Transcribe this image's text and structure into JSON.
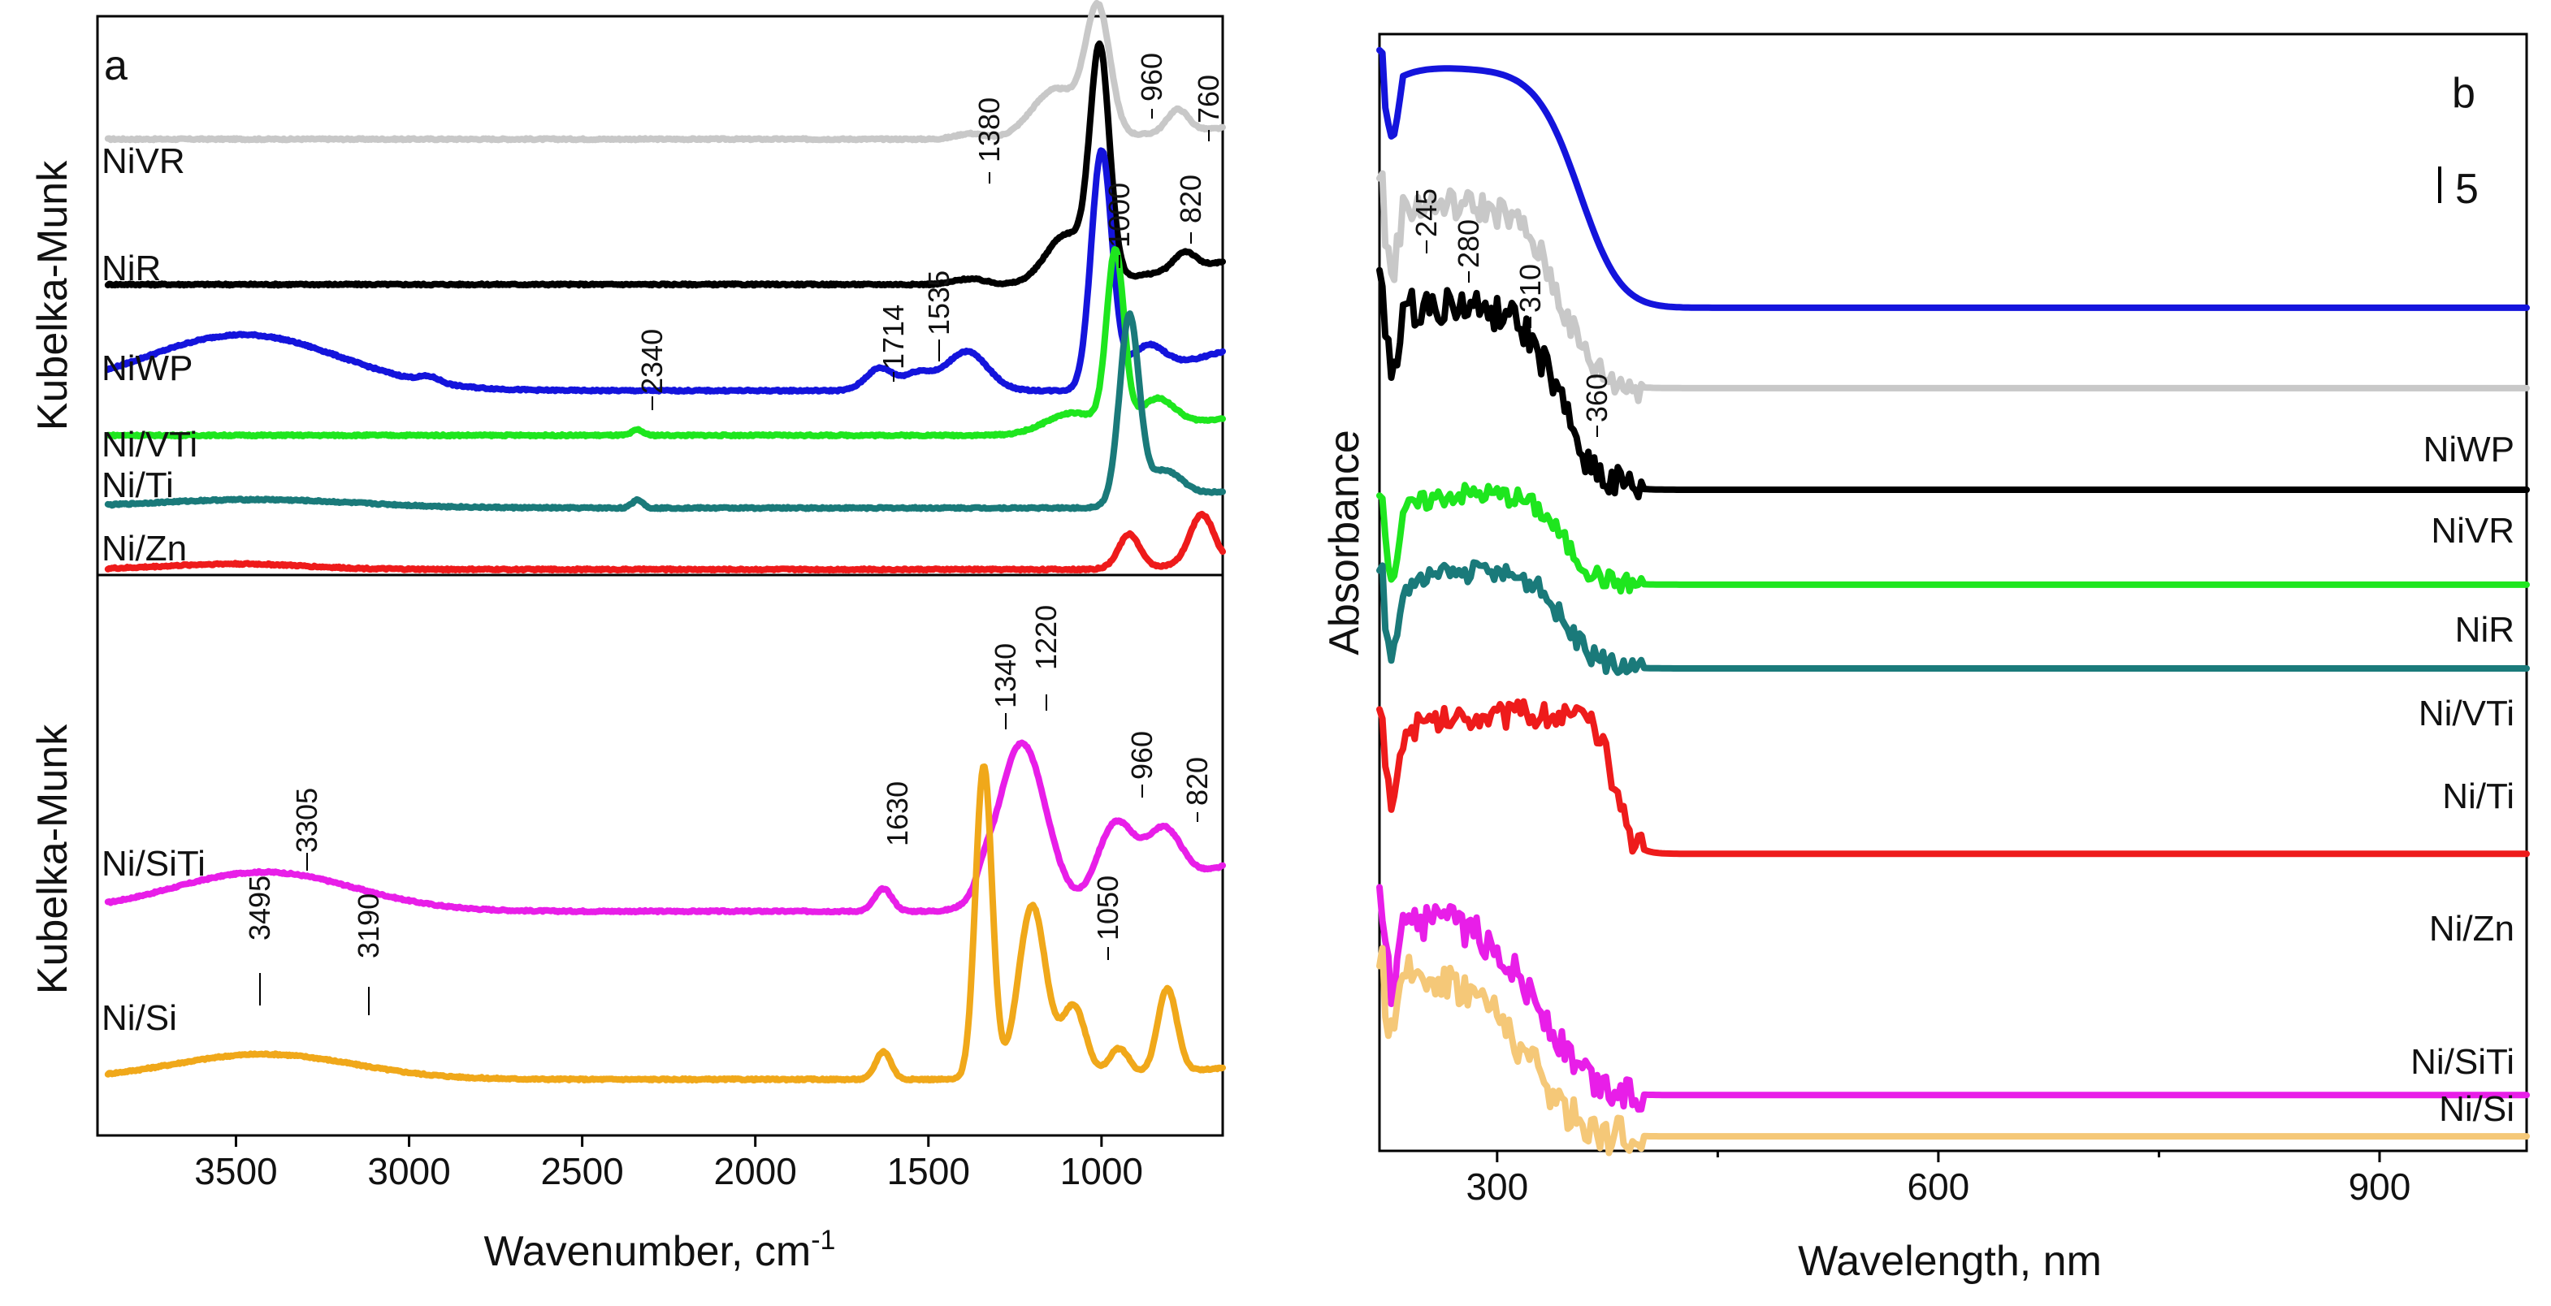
{
  "colors": {
    "NiVR": "#c8c8c8",
    "NiR": "#000000",
    "NiWP": "#1414dc",
    "Ni/VTi": "#1ee61e",
    "Ni/Ti": "#1a7a7a",
    "Ni/Zn": "#ee1b1b",
    "Ni/SiTi": "#e81ee8",
    "Ni/Si": "#f0a81a",
    "Ni/Ti_uv": "#22bcc8",
    "Ni/Si_uv": "#f5c878"
  },
  "chart_data": [
    {
      "id": "a-top",
      "type": "line",
      "panel_letter": "a",
      "ylabel": "Kubelka-Munk",
      "xlabel": "",
      "xlim": [
        3900,
        650
      ],
      "x_reversed": true,
      "ylim": [
        0,
        1
      ],
      "grid": false,
      "series": [
        {
          "name": "NiVR",
          "label": "NiVR",
          "color_key": "NiVR",
          "offset": 0.78,
          "peaks": [
            [
              1380,
              0.01,
              40
            ],
            [
              1130,
              0.09,
              70
            ],
            [
              1010,
              0.22,
              35
            ],
            [
              780,
              0.04,
              30
            ]
          ],
          "tail": 0.02
        },
        {
          "name": "NiR",
          "label": "NiR",
          "color_key": "NiR",
          "offset": 0.52,
          "peaks": [
            [
              1380,
              0.01,
              45
            ],
            [
              1100,
              0.09,
              60
            ],
            [
              1005,
              0.4,
              28
            ],
            [
              760,
              0.03,
              30
            ]
          ],
          "tail": 0.04
        },
        {
          "name": "NiWP",
          "label": "NiWP",
          "color_key": "NiWP",
          "offset": 0.33,
          "peaks": [
            [
              3480,
              0.1,
              280
            ],
            [
              2940,
              0.01,
              30
            ],
            [
              1640,
              0.04,
              40
            ],
            [
              1530,
              0.03,
              40
            ],
            [
              1390,
              0.07,
              60
            ],
            [
              1000,
              0.42,
              30
            ],
            [
              870,
              0.05,
              50
            ]
          ],
          "tail": 0.07
        },
        {
          "name": "Ni/VTi",
          "label": "Ni/VTi",
          "color_key": "Ni/VTi",
          "offset": 0.25,
          "peaks": [
            [
              2340,
              0.01,
              15
            ],
            [
              1080,
              0.04,
              80
            ],
            [
              960,
              0.31,
              25
            ],
            [
              840,
              0.05,
              50
            ]
          ],
          "tail": 0.03
        },
        {
          "name": "Ni/Ti",
          "label": "Ni/Ti",
          "color_key": "Ni/Ti",
          "offset": 0.12,
          "peaks": [
            [
              3450,
              0.015,
              300
            ],
            [
              2340,
              0.015,
              15
            ],
            [
              920,
              0.33,
              28
            ],
            [
              820,
              0.05,
              50
            ]
          ],
          "tail": 0.03
        },
        {
          "name": "Ni/Zn",
          "label": "Ni/Zn",
          "color_key": "Ni/Zn",
          "offset": 0.01,
          "peaks": [
            [
              3500,
              0.01,
              200
            ],
            [
              920,
              0.06,
              30
            ],
            [
              710,
              0.09,
              35
            ]
          ],
          "tail": 0.01
        }
      ],
      "annotations": [
        "1380",
        "960",
        "760",
        "820",
        "1000",
        "1714",
        "1535",
        "2340"
      ]
    },
    {
      "id": "a-bottom",
      "type": "line",
      "panel_letter": "",
      "ylabel": "Kubelka-Munk",
      "xlabel": "Wavenumber, cm",
      "xlabel_sup": "-1",
      "xlim": [
        3900,
        650
      ],
      "x_reversed": true,
      "x_ticks": [
        3500,
        3000,
        2500,
        2000,
        1500,
        1000
      ],
      "x_tick_labels": [
        "3500",
        "3000",
        "2500",
        "2000",
        "1500",
        "1000"
      ],
      "ylim": [
        0,
        1
      ],
      "grid": false,
      "series": [
        {
          "name": "Ni/SiTi",
          "label": "Ni/SiTi",
          "color_key": "Ni/SiTi",
          "offset": 0.4,
          "peaks": [
            [
              3420,
              0.07,
              260
            ],
            [
              1630,
              0.04,
              25
            ],
            [
              1230,
              0.3,
              70
            ],
            [
              1340,
              0.02,
              20
            ],
            [
              960,
              0.14,
              55
            ],
            [
              820,
              0.1,
              50
            ]
          ],
          "tail": 0.08
        },
        {
          "name": "Ni/Si",
          "label": "Ni/Si",
          "color_key": "Ni/Si",
          "offset": 0.1,
          "peaks": [
            [
              3420,
              0.045,
              260
            ],
            [
              1630,
              0.05,
              22
            ],
            [
              1340,
              0.56,
              24
            ],
            [
              1200,
              0.31,
              40
            ],
            [
              1080,
              0.13,
              35
            ],
            [
              950,
              0.05,
              30
            ],
            [
              810,
              0.15,
              28
            ]
          ],
          "tail": 0.02
        }
      ],
      "annotations": [
        "3305",
        "3190",
        "3495",
        "1630",
        "1340",
        "1220",
        "960",
        "820",
        "1050"
      ]
    },
    {
      "id": "b",
      "type": "line",
      "panel_letter": "b",
      "ylabel": "Absorbance",
      "xlabel": "Wavelength, nm",
      "xlim": [
        220,
        1000
      ],
      "x_ticks": [
        300,
        600,
        900
      ],
      "x_tick_labels": [
        "300",
        "600",
        "900"
      ],
      "x_minor_ticks": [
        450,
        750
      ],
      "ylim": [
        0,
        1
      ],
      "grid": false,
      "scale_bar_label": "5",
      "series": [
        {
          "name": "NiWP",
          "label": "NiWP",
          "color_key": "NiWP",
          "base": 0.755,
          "amp": 0.215,
          "center": 285,
          "width": 95,
          "edge": 360,
          "sharp": 16,
          "noise": 0.0
        },
        {
          "name": "NiVR",
          "label": "NiVR",
          "color_key": "NiVR",
          "base": 0.683,
          "amp": 0.165,
          "center": 280,
          "width": 90,
          "edge": 345,
          "sharp": 14,
          "noise": 0.014
        },
        {
          "name": "NiR",
          "label": "NiR",
          "color_key": "NiR",
          "base": 0.592,
          "amp": 0.165,
          "center": 280,
          "width": 90,
          "edge": 345,
          "sharp": 14,
          "noise": 0.016
        },
        {
          "name": "Ni/VTi",
          "label": "Ni/VTi",
          "color_key": "Ni/VTi",
          "base": 0.507,
          "amp": 0.082,
          "center": 310,
          "width": 90,
          "edge": 345,
          "sharp": 11,
          "noise": 0.009
        },
        {
          "name": "Ni/Ti",
          "label": "Ni/Ti",
          "color_key": "Ni/Ti",
          "base": 0.432,
          "amp": 0.087,
          "center": 310,
          "width": 90,
          "edge": 345,
          "sharp": 11,
          "noise": 0.009
        },
        {
          "name": "Ni/Zn",
          "label": "Ni/Zn",
          "color_key": "Ni/Zn",
          "base": 0.266,
          "amp": 0.125,
          "center": 320,
          "width": 110,
          "edge": 380,
          "sharp": 6,
          "noise": 0.012
        },
        {
          "name": "Ni/SiTi",
          "label": "Ni/SiTi",
          "color_key": "Ni/SiTi",
          "base": 0.05,
          "amp": 0.16,
          "center": 280,
          "width": 80,
          "edge": 330,
          "sharp": 20,
          "noise": 0.016
        },
        {
          "name": "Ni/Si",
          "label": "Ni/Si",
          "color_key": "Ni/Si_uv",
          "base": 0.013,
          "amp": 0.15,
          "center": 280,
          "width": 80,
          "edge": 320,
          "sharp": 20,
          "noise": 0.018
        }
      ],
      "annotations": [
        "245",
        "280",
        "310",
        "360"
      ]
    }
  ]
}
